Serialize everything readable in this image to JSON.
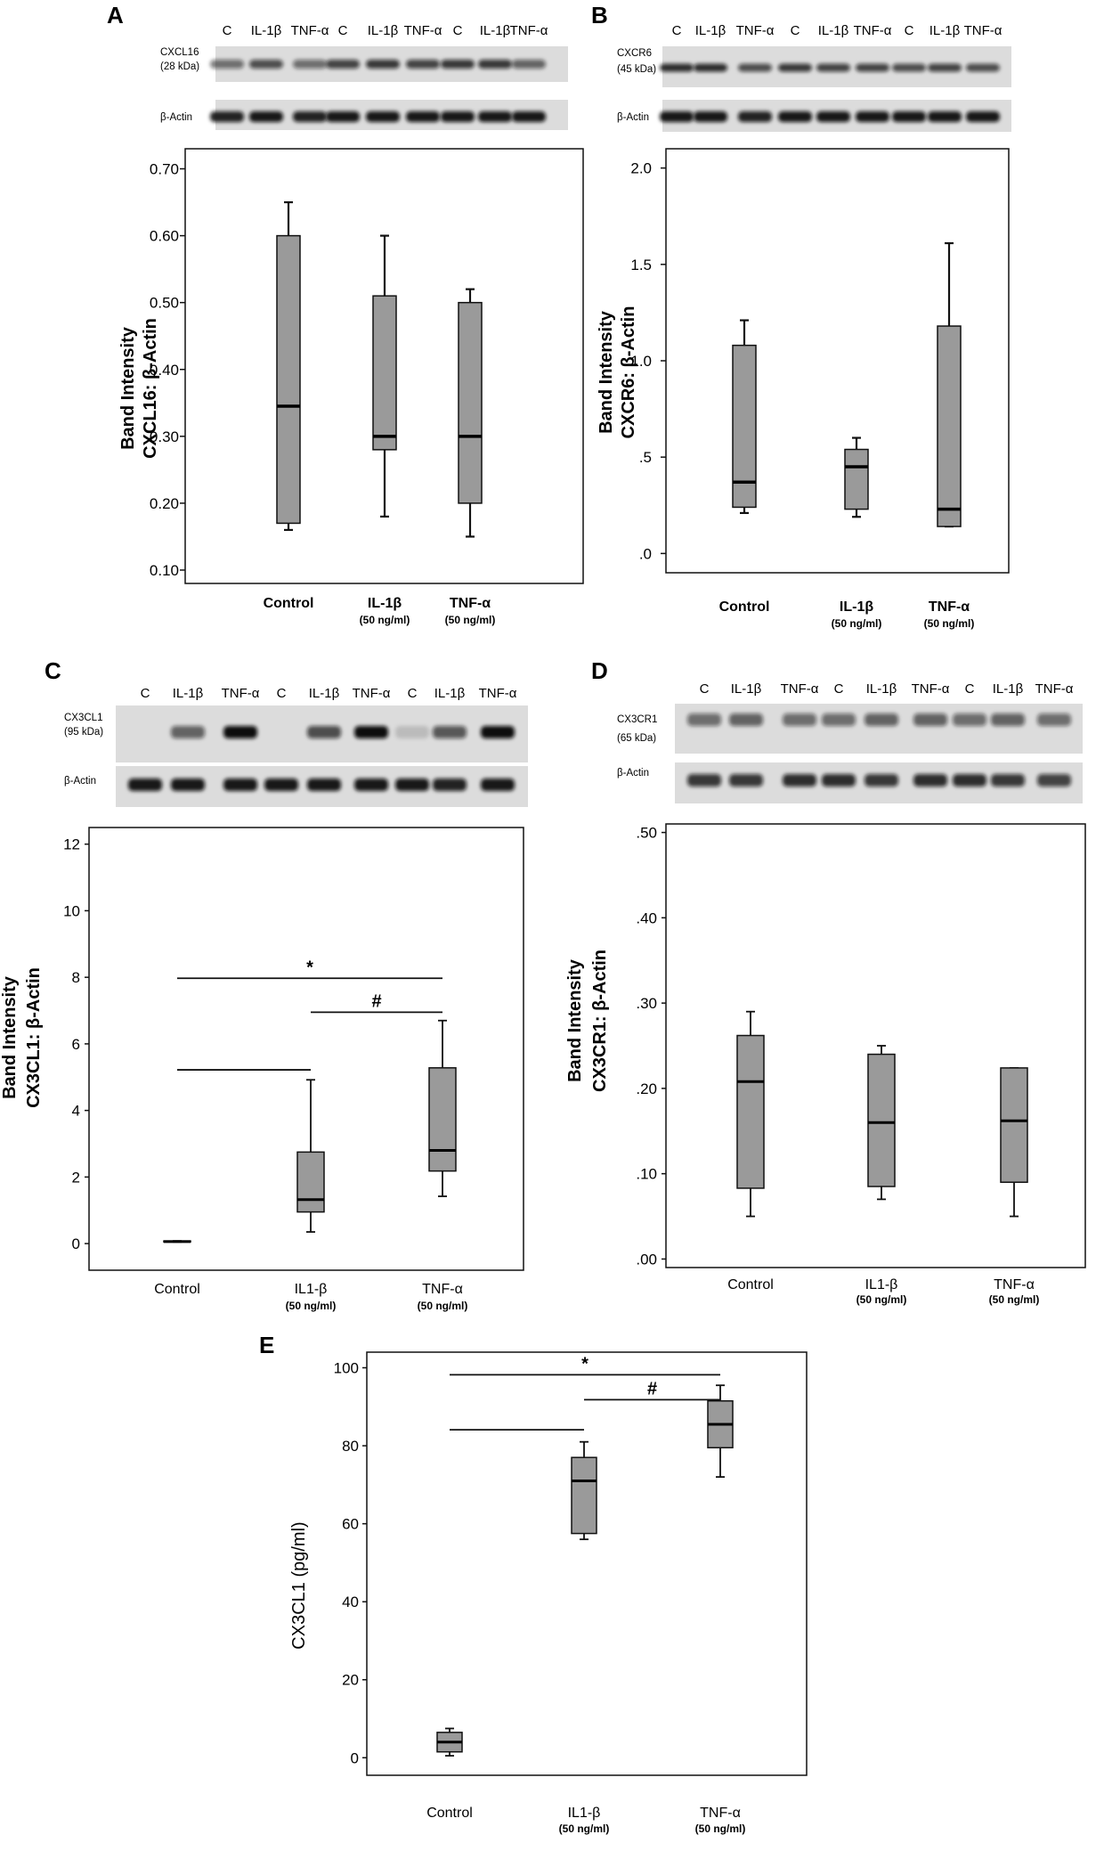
{
  "blots": [
    {
      "panel": "A",
      "lanes": [
        "C",
        "IL-1β",
        "TNF-α",
        "C",
        "IL-1β",
        "TNF-α",
        "C",
        "IL-1β",
        "TNF-α"
      ],
      "target_name": "CXCL16",
      "target_kda": "(28 kDa)",
      "loading_label": "β-Actin"
    },
    {
      "panel": "B",
      "lanes": [
        "C",
        "IL-1β",
        "TNF-α",
        "C",
        "IL-1β",
        "TNF-α",
        "C",
        "IL-1β",
        "TNF-α"
      ],
      "target_name": "CXCR6",
      "target_kda": "(45 kDa)",
      "loading_label": "β-Actin"
    },
    {
      "panel": "C",
      "lanes": [
        "C",
        "IL-1β",
        "TNF-α",
        "C",
        "IL-1β",
        "TNF-α",
        "C",
        "IL-1β",
        "TNF-α"
      ],
      "target_name": "CX3CL1",
      "target_kda": "(95 kDa)",
      "loading_label": "β-Actin"
    },
    {
      "panel": "D",
      "lanes": [
        "C",
        "IL-1β",
        "TNF-α",
        "C",
        "IL-1β",
        "TNF-α",
        "C",
        "IL-1β",
        "TNF-α"
      ],
      "target_name": "CX3CR1",
      "target_kda": "(65 kDa)",
      "loading_label": "β-Actin"
    }
  ],
  "chart_data": [
    {
      "panel": "A",
      "type": "box",
      "ylabel_line1": "Band Intensity",
      "ylabel_line2": "CXCL16: β-Actin",
      "ylim": [
        0.08,
        0.73
      ],
      "yticks": [
        0.1,
        0.2,
        0.3,
        0.4,
        0.5,
        0.6,
        0.7
      ],
      "ytick_labels": [
        "0.10",
        "0.20",
        "0.30",
        "0.40",
        "0.50",
        "0.60",
        "0.70"
      ],
      "categories": [
        "Control",
        "IL-1β",
        "TNF-α"
      ],
      "category_sub": [
        "",
        "(50 ng/ml)",
        "(50 ng/ml)"
      ],
      "boxes": [
        {
          "min": 0.16,
          "q1": 0.17,
          "median": 0.345,
          "q3": 0.6,
          "max": 0.65
        },
        {
          "min": 0.18,
          "q1": 0.28,
          "median": 0.3,
          "q3": 0.51,
          "max": 0.6
        },
        {
          "min": 0.15,
          "q1": 0.2,
          "median": 0.3,
          "q3": 0.5,
          "max": 0.52
        }
      ],
      "significance": []
    },
    {
      "panel": "B",
      "type": "box",
      "ylabel_line1": "Band Intensity",
      "ylabel_line2": "CXCR6: β-Actin",
      "ylim": [
        -0.1,
        2.1
      ],
      "yticks": [
        0,
        0.5,
        1.0,
        1.5,
        2.0
      ],
      "ytick_labels": [
        ".0",
        ".5",
        "1.0",
        "1.5",
        "2.0"
      ],
      "categories": [
        "Control",
        "IL-1β",
        "TNF-α"
      ],
      "category_sub": [
        "",
        "(50 ng/ml)",
        "(50 ng/ml)"
      ],
      "boxes": [
        {
          "min": 0.21,
          "q1": 0.24,
          "median": 0.37,
          "q3": 1.08,
          "max": 1.21
        },
        {
          "min": 0.19,
          "q1": 0.23,
          "median": 0.45,
          "q3": 0.54,
          "max": 0.6
        },
        {
          "min": 0.14,
          "q1": 0.14,
          "median": 0.23,
          "q3": 1.18,
          "max": 1.61
        }
      ],
      "significance": []
    },
    {
      "panel": "C",
      "type": "box",
      "ylabel_line1": "Band Intensity",
      "ylabel_line2": "CX3CL1: β-Actin",
      "ylim": [
        -0.8,
        12.5
      ],
      "yticks": [
        0,
        2,
        4,
        6,
        8,
        10,
        12
      ],
      "ytick_labels": [
        "0",
        "2",
        "4",
        "6",
        "8",
        "10",
        "12"
      ],
      "categories": [
        "Control",
        "IL1-β",
        "TNF-α"
      ],
      "category_sub": [
        "",
        "(50 ng/ml)",
        "(50 ng/ml)"
      ],
      "boxes": [
        {
          "min": 0.05,
          "q1": 0.05,
          "median": 0.06,
          "q3": 0.08,
          "max": 0.08
        },
        {
          "min": 0.35,
          "q1": 0.95,
          "median": 1.32,
          "q3": 2.75,
          "max": 4.92
        },
        {
          "min": 1.42,
          "q1": 2.18,
          "median": 2.8,
          "q3": 5.28,
          "max": 6.7
        }
      ],
      "significance": [
        {
          "from": 0,
          "to": 2,
          "y": 7.97,
          "label": "*"
        },
        {
          "from": 1,
          "to": 2,
          "y": 6.95,
          "label": "#"
        },
        {
          "from": 0,
          "to": 1,
          "y": 5.22,
          "label": ""
        }
      ]
    },
    {
      "panel": "D",
      "type": "box",
      "ylabel_line1": "Band Intensity",
      "ylabel_line2": "CX3CR1: β-Actin",
      "ylim": [
        -0.01,
        0.51
      ],
      "yticks": [
        0,
        0.1,
        0.2,
        0.3,
        0.4,
        0.5
      ],
      "ytick_labels": [
        ".00",
        ".10",
        ".20",
        ".30",
        ".40",
        ".50"
      ],
      "categories": [
        "Control",
        "IL1-β",
        "TNF-α"
      ],
      "category_sub": [
        "",
        "(50 ng/ml)",
        "(50 ng/ml)"
      ],
      "boxes": [
        {
          "min": 0.05,
          "q1": 0.083,
          "median": 0.208,
          "q3": 0.262,
          "max": 0.29
        },
        {
          "min": 0.07,
          "q1": 0.085,
          "median": 0.16,
          "q3": 0.24,
          "max": 0.25
        },
        {
          "min": 0.05,
          "q1": 0.09,
          "median": 0.162,
          "q3": 0.224,
          "max": 0.224
        }
      ],
      "significance": []
    },
    {
      "panel": "E",
      "type": "box",
      "ylabel_line1": "",
      "ylabel_line2": "CX3CL1 (pg/ml)",
      "ylim": [
        -4.5,
        104
      ],
      "yticks": [
        0,
        20,
        40,
        60,
        80,
        100
      ],
      "ytick_labels": [
        "0",
        "20",
        "40",
        "60",
        "80",
        "100"
      ],
      "categories": [
        "Control",
        "IL1-β",
        "TNF-α"
      ],
      "category_sub": [
        "",
        "(50 ng/ml)",
        "(50 ng/ml)"
      ],
      "boxes": [
        {
          "min": 0.5,
          "q1": 1.5,
          "median": 4.0,
          "q3": 6.5,
          "max": 7.5
        },
        {
          "min": 56,
          "q1": 57.5,
          "median": 71,
          "q3": 77,
          "max": 81
        },
        {
          "min": 72,
          "q1": 79.5,
          "median": 85.5,
          "q3": 91.5,
          "max": 95.5
        }
      ],
      "significance": [
        {
          "from": 0,
          "to": 2,
          "y": 98.2,
          "label": "*"
        },
        {
          "from": 1,
          "to": 2,
          "y": 91.8,
          "label": "#"
        },
        {
          "from": 0,
          "to": 1,
          "y": 84.1,
          "label": ""
        }
      ]
    }
  ]
}
